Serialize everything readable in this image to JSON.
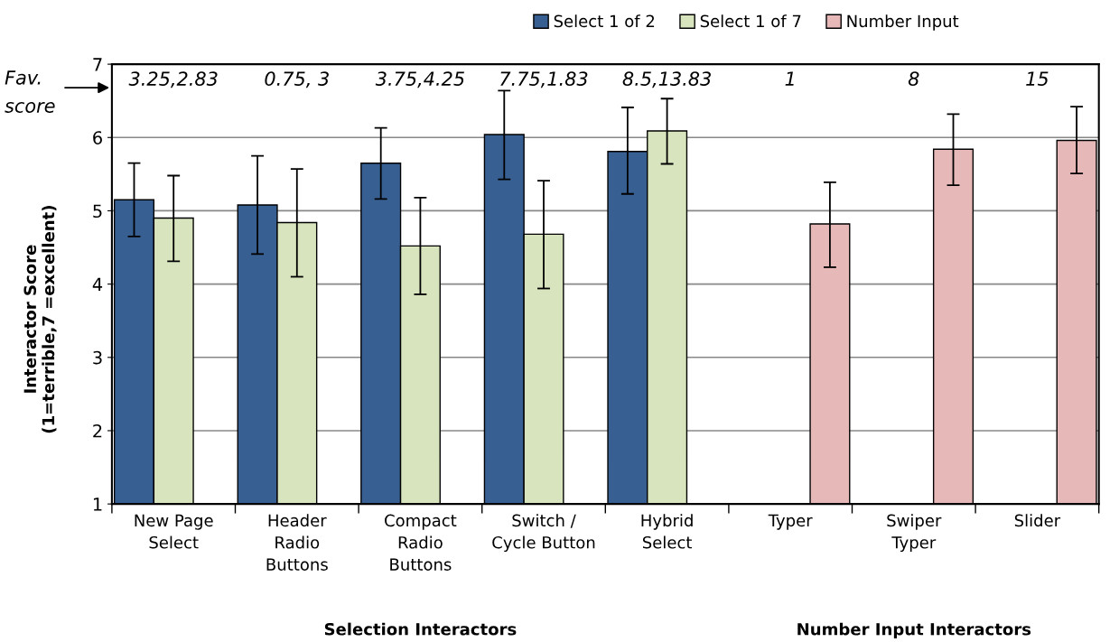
{
  "chart_data": {
    "type": "bar",
    "ylabel": "Interactor Score\n(1=terrible,7 =excellent)",
    "categories": [
      "New Page\nSelect",
      "Header\nRadio\nButtons",
      "Compact\nRadio\nButtons",
      "Switch /\nCycle Button",
      "Hybrid\nSelect",
      "Typer",
      "Swiper\nTyper",
      "Slider"
    ],
    "series": [
      {
        "name": "Select 1 of 2",
        "color": "#375f91",
        "values": [
          5.15,
          5.08,
          5.65,
          6.04,
          5.81,
          null,
          null,
          null
        ],
        "errors": [
          [
            4.65,
            5.65
          ],
          [
            4.41,
            5.75
          ],
          [
            5.16,
            6.13
          ],
          [
            5.43,
            6.64
          ],
          [
            5.23,
            6.41
          ],
          null,
          null,
          null
        ]
      },
      {
        "name": "Select 1 of 7",
        "color": "#d7e4bd",
        "values": [
          4.9,
          4.84,
          4.52,
          4.68,
          6.09,
          null,
          null,
          null
        ],
        "errors": [
          [
            4.31,
            5.48
          ],
          [
            4.1,
            5.57
          ],
          [
            3.86,
            5.18
          ],
          [
            3.94,
            5.41
          ],
          [
            5.64,
            6.53
          ],
          null,
          null,
          null
        ]
      },
      {
        "name": "Number Input",
        "color": "#e6b9b8",
        "values": [
          null,
          null,
          null,
          null,
          null,
          4.82,
          5.84,
          5.96
        ],
        "errors": [
          null,
          null,
          null,
          null,
          null,
          [
            4.23,
            5.39
          ],
          [
            5.35,
            6.32
          ],
          [
            5.51,
            6.42
          ]
        ]
      }
    ],
    "ylim": [
      1,
      7
    ],
    "yticks": [
      1,
      2,
      3,
      4,
      5,
      6,
      7
    ],
    "grid": "y",
    "legend": "top right",
    "annotations": [
      "3.25,2.83",
      "0.75, 3",
      "3.75,4.25",
      "7.75,1.83",
      "8.5,13.83",
      "1",
      "8",
      "15",
      "Fav.\nscore",
      "Selection Interactors",
      "Number Input Interactors"
    ]
  }
}
